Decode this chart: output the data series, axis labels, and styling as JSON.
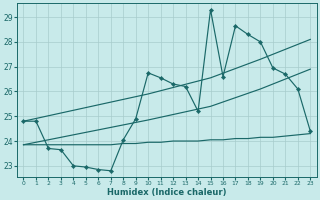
{
  "xlabel": "Humidex (Indice chaleur)",
  "bg_color": "#c8eaea",
  "grid_color": "#a8cccc",
  "line_color": "#1a6868",
  "xlim": [
    -0.5,
    23.5
  ],
  "ylim": [
    22.55,
    29.55
  ],
  "yticks": [
    23,
    24,
    25,
    26,
    27,
    28,
    29
  ],
  "xticks": [
    0,
    1,
    2,
    3,
    4,
    5,
    6,
    7,
    8,
    9,
    10,
    11,
    12,
    13,
    14,
    15,
    16,
    17,
    18,
    19,
    20,
    21,
    22,
    23
  ],
  "line_main_x": [
    0,
    1,
    2,
    3,
    4,
    5,
    6,
    7,
    8,
    9,
    10,
    11,
    12,
    13,
    14,
    15,
    16,
    17,
    18,
    19,
    20,
    21,
    22,
    23
  ],
  "line_main_y": [
    24.8,
    24.8,
    23.7,
    23.65,
    23.0,
    22.95,
    22.85,
    22.8,
    24.05,
    24.9,
    26.75,
    26.55,
    26.3,
    26.2,
    25.2,
    29.3,
    26.6,
    28.65,
    28.3,
    28.0,
    26.95,
    26.7,
    26.1,
    24.4
  ],
  "trend1_x": [
    0,
    10,
    15,
    19,
    20,
    23
  ],
  "trend1_y": [
    24.8,
    25.9,
    26.55,
    27.3,
    27.5,
    28.1
  ],
  "trend2_x": [
    0,
    10,
    15,
    19,
    20,
    23
  ],
  "trend2_y": [
    23.85,
    24.85,
    25.4,
    26.1,
    26.3,
    26.9
  ],
  "flat_x": [
    0,
    7,
    8,
    9,
    10,
    11,
    12,
    13,
    14,
    15,
    16,
    17,
    18,
    19,
    20,
    21,
    22,
    23
  ],
  "flat_y": [
    23.85,
    23.85,
    23.9,
    23.9,
    23.95,
    23.95,
    24.0,
    24.0,
    24.0,
    24.05,
    24.05,
    24.1,
    24.1,
    24.15,
    24.15,
    24.2,
    24.25,
    24.3
  ]
}
